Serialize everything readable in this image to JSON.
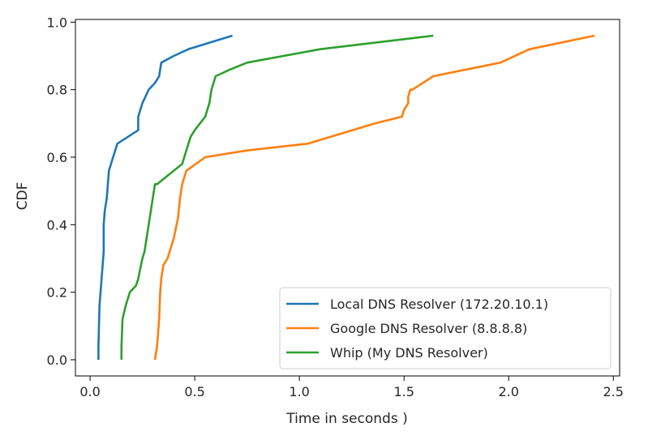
{
  "chart_data": {
    "type": "line",
    "title": "",
    "xlabel": "Time in seconds )",
    "ylabel": "CDF",
    "xlim": [
      -0.07,
      2.53
    ],
    "ylim": [
      -0.048,
      1.008
    ],
    "xticks": [
      0.0,
      0.5,
      1.0,
      1.5,
      2.0,
      2.5
    ],
    "xtick_labels": [
      "0.0",
      "0.5",
      "1.0",
      "1.5",
      "2.0",
      "2.5"
    ],
    "yticks": [
      0.0,
      0.2,
      0.4,
      0.6,
      0.8,
      1.0
    ],
    "ytick_labels": [
      "0.0",
      "0.2",
      "0.4",
      "0.6",
      "0.8",
      "1.0"
    ],
    "grid": false,
    "legend_position": "lower right",
    "series": [
      {
        "name": "Local DNS Resolver (172.20.10.1)",
        "color": "#1f77b4",
        "x": [
          0.04,
          0.04,
          0.045,
          0.05,
          0.06,
          0.065,
          0.065,
          0.07,
          0.08,
          0.085,
          0.09,
          0.1,
          0.11,
          0.13,
          0.23,
          0.23,
          0.25,
          0.28,
          0.31,
          0.33,
          0.34,
          0.4,
          0.47,
          0.68
        ],
        "y": [
          0.0,
          0.04,
          0.16,
          0.2,
          0.28,
          0.32,
          0.4,
          0.44,
          0.48,
          0.52,
          0.56,
          0.58,
          0.6,
          0.64,
          0.68,
          0.72,
          0.76,
          0.8,
          0.82,
          0.84,
          0.88,
          0.9,
          0.92,
          0.96
        ]
      },
      {
        "name": "Google DNS Resolver (8.8.8.8)",
        "color": "#ff7f0e",
        "x": [
          0.31,
          0.32,
          0.33,
          0.335,
          0.34,
          0.35,
          0.37,
          0.38,
          0.4,
          0.42,
          0.43,
          0.44,
          0.46,
          0.55,
          0.75,
          1.04,
          1.2,
          1.36,
          1.49,
          1.5,
          1.52,
          1.52,
          1.53,
          1.54,
          1.64,
          1.96,
          2.1,
          2.41
        ],
        "y": [
          0.0,
          0.04,
          0.12,
          0.2,
          0.24,
          0.28,
          0.3,
          0.32,
          0.36,
          0.42,
          0.48,
          0.52,
          0.56,
          0.6,
          0.62,
          0.64,
          0.67,
          0.7,
          0.72,
          0.74,
          0.76,
          0.78,
          0.8,
          0.8,
          0.84,
          0.88,
          0.92,
          0.96
        ]
      },
      {
        "name": "Whip (My DNS Resolver)",
        "color": "#2ca02c",
        "x": [
          0.15,
          0.15,
          0.155,
          0.17,
          0.19,
          0.22,
          0.23,
          0.25,
          0.26,
          0.27,
          0.28,
          0.29,
          0.3,
          0.31,
          0.32,
          0.32,
          0.4,
          0.44,
          0.45,
          0.46,
          0.47,
          0.48,
          0.5,
          0.55,
          0.57,
          0.58,
          0.6,
          0.67,
          0.75,
          1.1,
          1.64
        ],
        "y": [
          0.0,
          0.04,
          0.12,
          0.16,
          0.2,
          0.22,
          0.24,
          0.3,
          0.32,
          0.36,
          0.4,
          0.44,
          0.48,
          0.52,
          0.52,
          0.52,
          0.56,
          0.58,
          0.6,
          0.62,
          0.64,
          0.66,
          0.68,
          0.72,
          0.76,
          0.8,
          0.84,
          0.86,
          0.88,
          0.92,
          0.96
        ]
      }
    ]
  }
}
